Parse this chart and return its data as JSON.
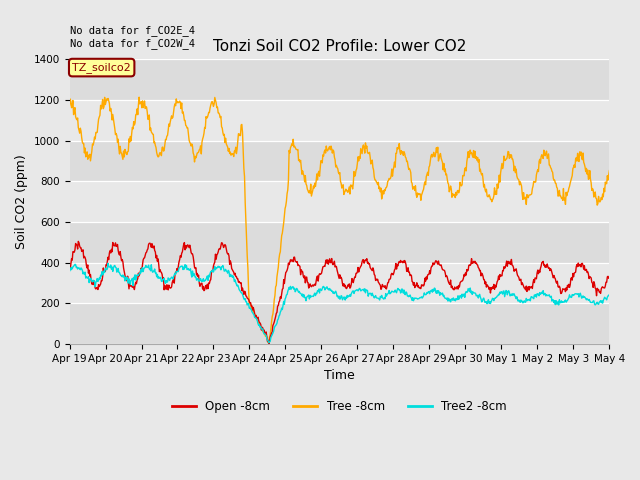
{
  "title": "Tonzi Soil CO2 Profile: Lower CO2",
  "xlabel": "Time",
  "ylabel": "Soil CO2 (ppm)",
  "ylim": [
    0,
    1400
  ],
  "yticks": [
    0,
    200,
    400,
    600,
    800,
    1000,
    1200,
    1400
  ],
  "xtick_labels": [
    "Apr 19",
    "Apr 20",
    "Apr 21",
    "Apr 22",
    "Apr 23",
    "Apr 24",
    "Apr 25",
    "Apr 26",
    "Apr 27",
    "Apr 28",
    "Apr 29",
    "Apr 30",
    "May 1",
    "May 2",
    "May 3",
    "May 4"
  ],
  "annotation_text": "No data for f_CO2E_4\nNo data for f_CO2W_4",
  "legend_label": "TZ_soilco2",
  "series_labels": [
    "Open -8cm",
    "Tree -8cm",
    "Tree2 -8cm"
  ],
  "series_colors": [
    "#dd0000",
    "#ffaa00",
    "#00dddd"
  ],
  "background_color": "#e8e8e8",
  "stripe_colors_odd": "#dcdcdc",
  "stripe_colors_even": "#e8e8e8",
  "title_fontsize": 11,
  "axis_label_fontsize": 9,
  "tick_fontsize": 7.5
}
